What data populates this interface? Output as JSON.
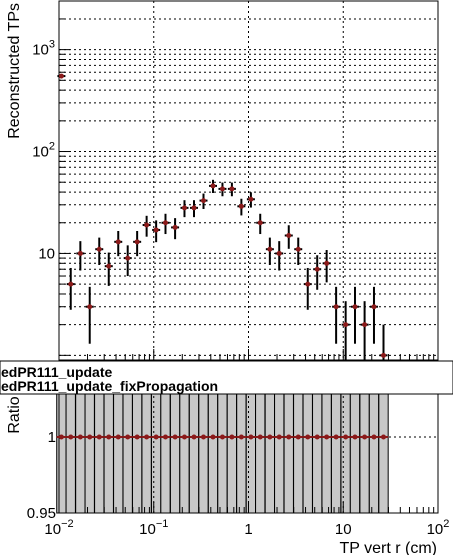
{
  "chart_data": [
    {
      "type": "scatter",
      "scale": "log-log",
      "ylabel": "Reconstructed TPs",
      "xlim": [
        0.01,
        100
      ],
      "ylim": [
        0.9,
        3000
      ],
      "grid": true,
      "x_ticks": [
        {
          "value": 0.01,
          "base": "10",
          "exp": "−2"
        },
        {
          "value": 0.1,
          "base": "10",
          "exp": "−1"
        },
        {
          "value": 1,
          "base": "1",
          "exp": ""
        },
        {
          "value": 10,
          "base": "10",
          "exp": ""
        },
        {
          "value": 100,
          "base": "10",
          "exp": "2"
        }
      ],
      "y_ticks": [
        {
          "value": 10,
          "base": "10",
          "exp": ""
        },
        {
          "value": 100,
          "base": "10",
          "exp": "2"
        },
        {
          "value": 1000,
          "base": "10",
          "exp": "3"
        }
      ],
      "series": [
        {
          "x": [
            0.0106,
            0.0133,
            0.0168,
            0.0211,
            0.0266,
            0.0335,
            0.0422,
            0.0531,
            0.0668,
            0.0841,
            0.106,
            0.133,
            0.168,
            0.211,
            0.266,
            0.335,
            0.422,
            0.531,
            0.668,
            0.841,
            1.06,
            1.33,
            1.68,
            2.11,
            2.66,
            3.35,
            4.22,
            5.31,
            6.68,
            8.41,
            10.6,
            13.3,
            16.8,
            21.1,
            26.6
          ],
          "y": [
            550,
            5,
            10,
            3,
            11,
            7.5,
            13,
            9,
            13,
            19,
            17,
            20,
            18,
            28,
            28,
            33,
            46,
            43,
            43,
            29,
            34,
            20,
            11,
            10,
            15,
            11,
            5,
            7,
            8,
            3,
            2,
            3,
            2,
            3,
            1
          ],
          "yerr": [
            23,
            2.2,
            3.2,
            1.7,
            3.3,
            2.7,
            3.6,
            3,
            3.6,
            4.4,
            4.1,
            4.5,
            4.2,
            5.3,
            5.3,
            5.7,
            6.8,
            6.6,
            6.6,
            5.4,
            5.8,
            4.5,
            3.3,
            3.2,
            3.9,
            3.3,
            2.2,
            2.6,
            2.8,
            1.7,
            1.4,
            1.7,
            1.4,
            1.7,
            1
          ]
        }
      ]
    },
    {
      "type": "scatter",
      "scale": "log-x",
      "ylabel": "Ratio",
      "xlabel": "TP vert r (cm)",
      "xlim": [
        0.01,
        100
      ],
      "ylim": [
        0.95,
        1.05
      ],
      "grid": true,
      "y_ticks": [
        {
          "value": 0.95,
          "label": "0.95"
        },
        {
          "value": 1,
          "label": "1"
        }
      ],
      "legend": [
        "edPR111_update",
        "edPR111_update_fixPropagation"
      ],
      "series": [
        {
          "x": [
            0.0106,
            0.0133,
            0.0168,
            0.0211,
            0.0266,
            0.0335,
            0.0422,
            0.0531,
            0.0668,
            0.0841,
            0.106,
            0.133,
            0.168,
            0.211,
            0.266,
            0.335,
            0.422,
            0.531,
            0.668,
            0.841,
            1.06,
            1.33,
            1.68,
            2.11,
            2.66,
            3.35,
            4.22,
            5.31,
            6.68,
            8.41,
            10.6,
            13.3,
            16.8,
            21.1,
            26.6
          ],
          "y": [
            1,
            1,
            1,
            1,
            1,
            1,
            1,
            1,
            1,
            1,
            1,
            1,
            1,
            1,
            1,
            1,
            1,
            1,
            1,
            1,
            1,
            1,
            1,
            1,
            1,
            1,
            1,
            1,
            1,
            1,
            1,
            1,
            1,
            1,
            1
          ],
          "band": "full"
        }
      ]
    }
  ]
}
